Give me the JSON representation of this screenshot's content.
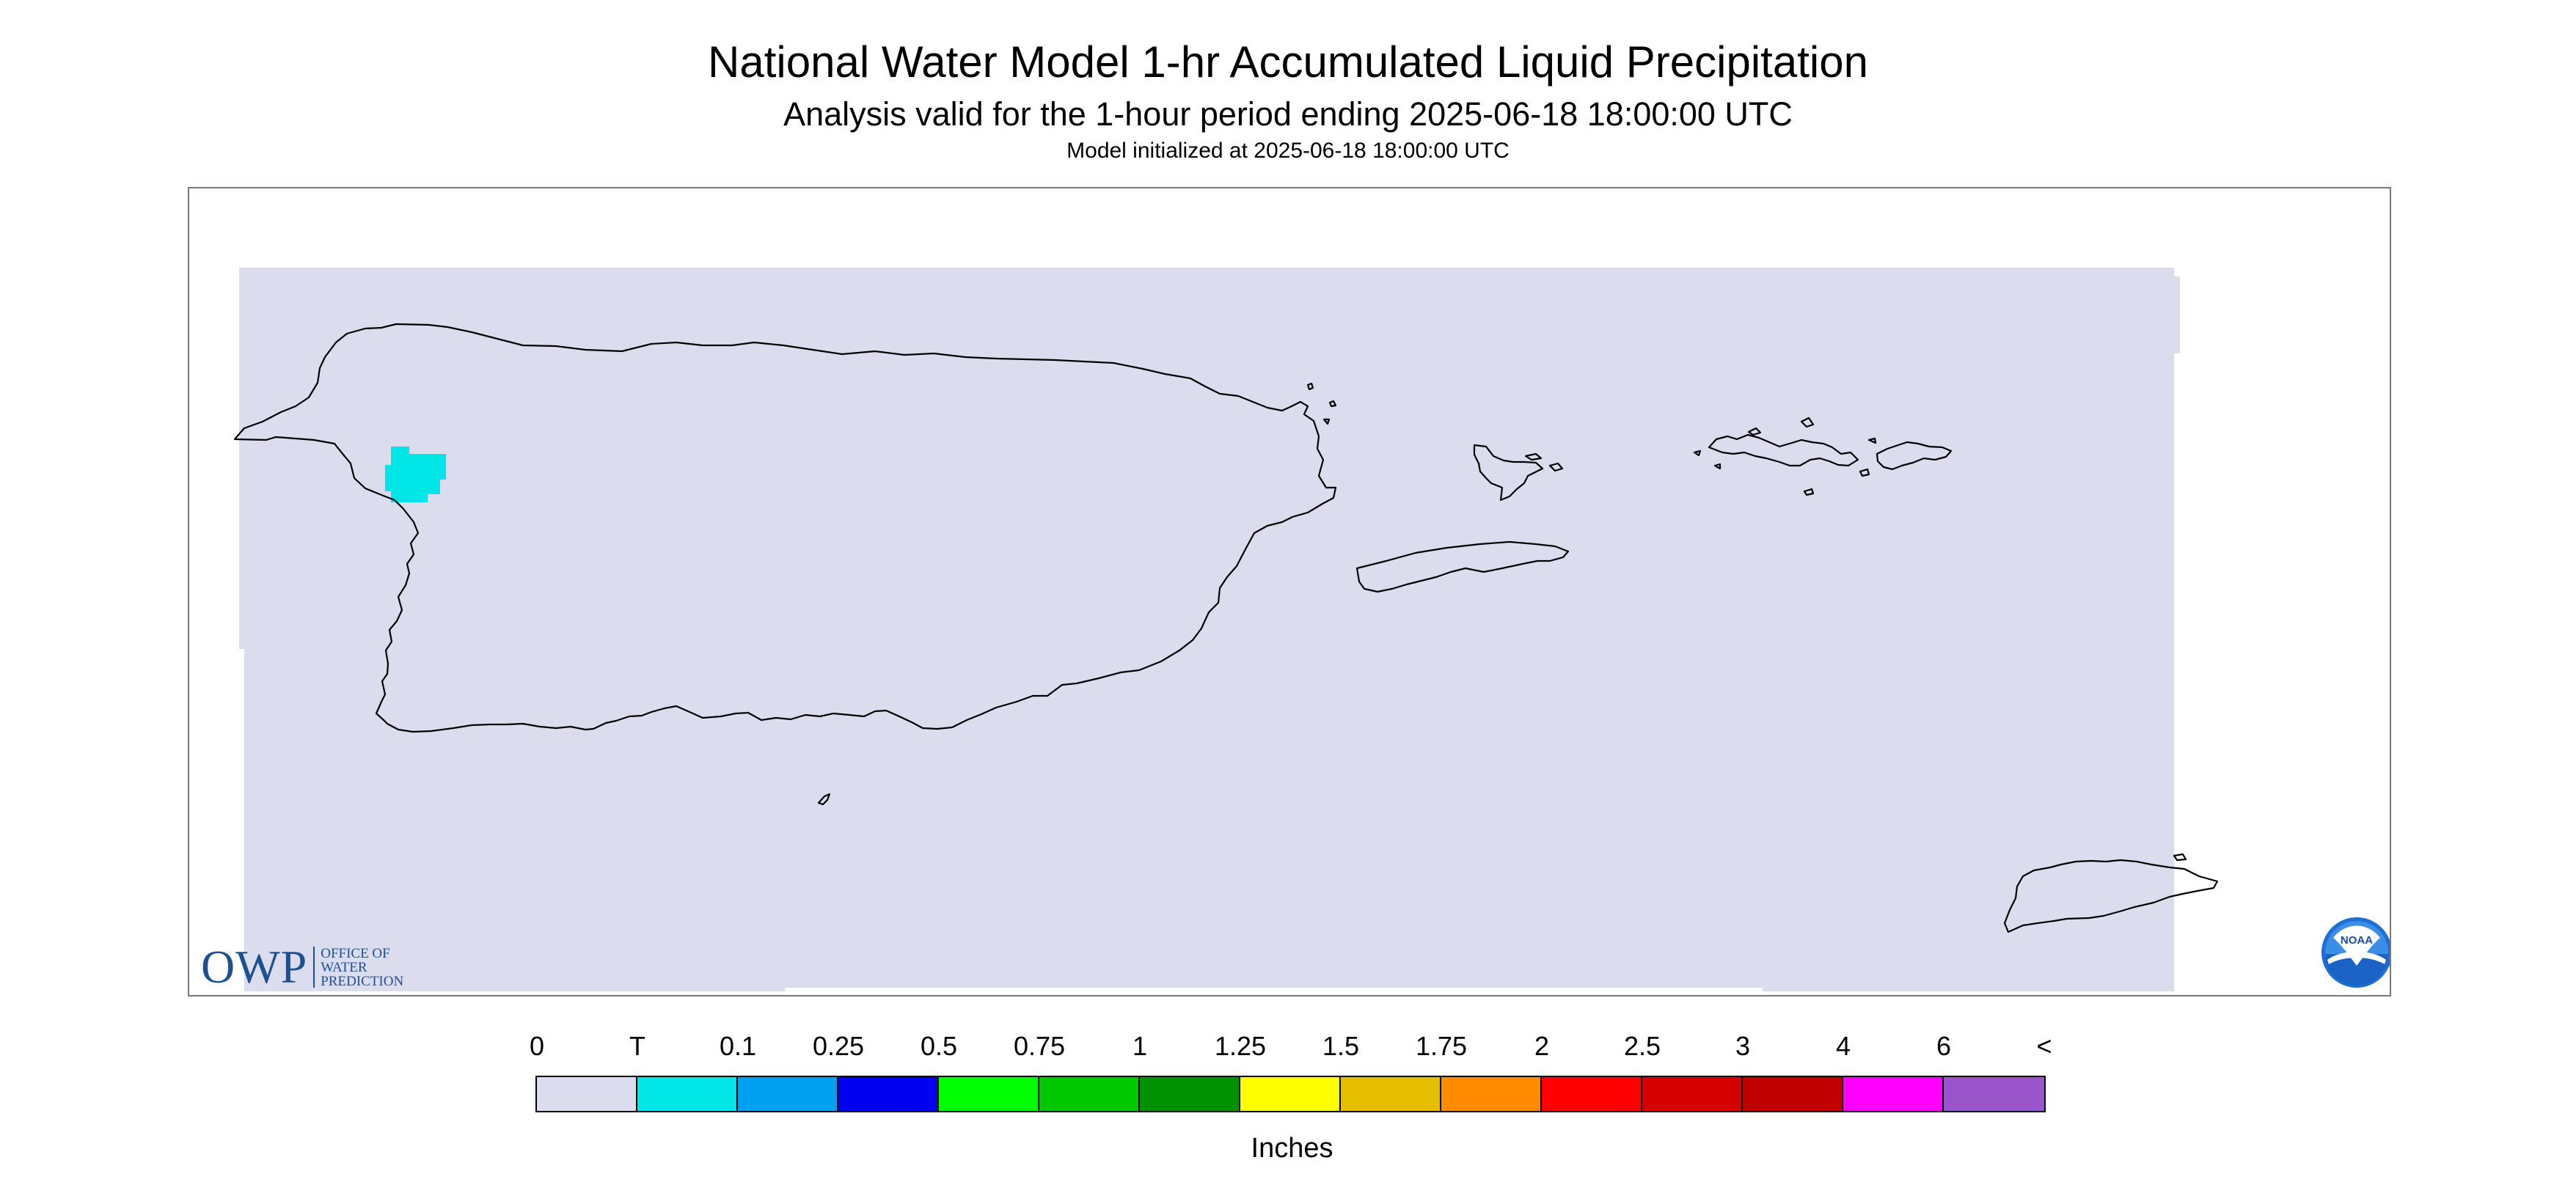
{
  "header": {
    "title": "National Water Model 1-hr Accumulated Liquid Precipitation",
    "subtitle": "Analysis valid for the 1-hour period ending 2025-06-18 18:00:00 UTC",
    "init": "Model initialized at 2025-06-18 18:00:00 UTC"
  },
  "map": {
    "background_color": "#dcdcef",
    "coastline_color": "#000000",
    "precip_color": "#00e5e5",
    "regions": [
      "Puerto Rico",
      "Vieques",
      "Culebra",
      "Virgin Islands",
      "St. Croix"
    ]
  },
  "logos": {
    "owp_mark": "OWP",
    "owp_words": [
      "Office of",
      "Water",
      "Prediction"
    ],
    "noaa_text": "NOAA",
    "noaa_icon": "noaa-seal-icon"
  },
  "legend": {
    "labels": [
      "0",
      "T",
      "0.1",
      "0.25",
      "0.5",
      "0.75",
      "1",
      "1.25",
      "1.5",
      "1.75",
      "2",
      "2.5",
      "3",
      "4",
      "6",
      "<"
    ],
    "colors": [
      "#dcdcef",
      "#00e5e5",
      "#00a0f0",
      "#0000f0",
      "#00ff00",
      "#00c800",
      "#009100",
      "#ffff00",
      "#e6be00",
      "#ff8c00",
      "#ff0000",
      "#d70000",
      "#c00000",
      "#ff00ff",
      "#9955c9"
    ],
    "units": "Inches"
  }
}
